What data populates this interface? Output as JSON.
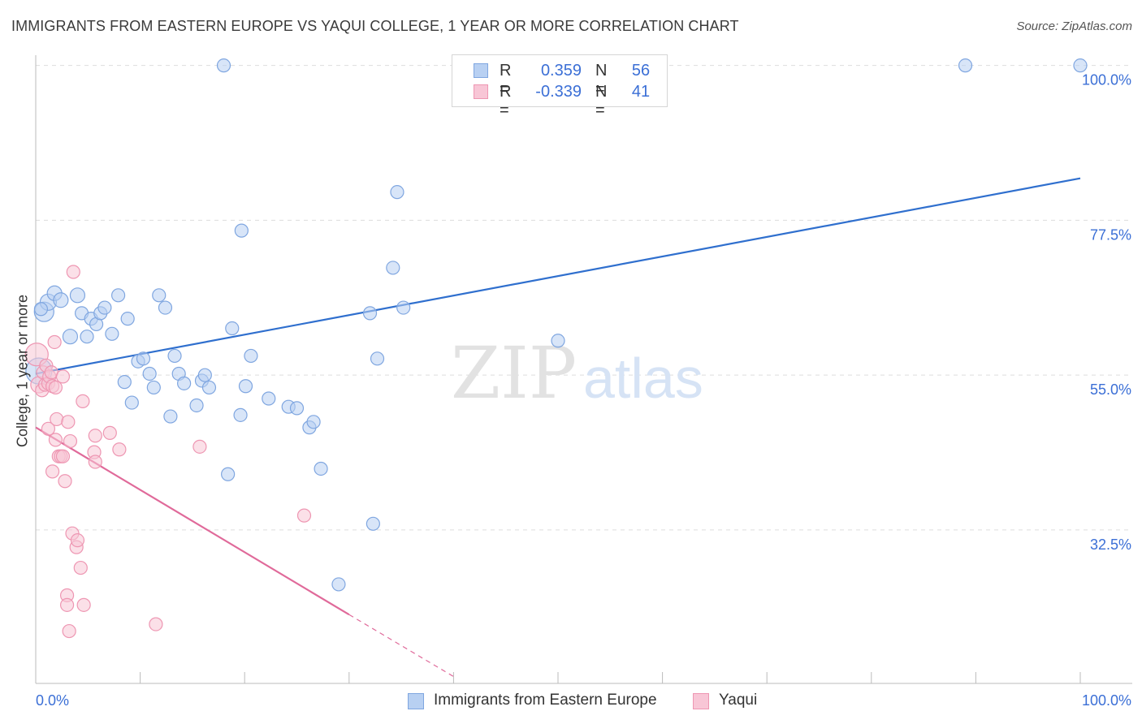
{
  "header": {
    "title": "IMMIGRANTS FROM EASTERN EUROPE VS YAQUI COLLEGE, 1 YEAR OR MORE CORRELATION CHART",
    "source": "Source: ZipAtlas.com"
  },
  "watermark": {
    "zip": "ZIP",
    "atlas": "atlas"
  },
  "legend": {
    "rows": [
      {
        "r_label": "R =",
        "r_value": "0.359",
        "n_label": "N =",
        "n_value": "56"
      },
      {
        "r_label": "R =",
        "r_value": "-0.339",
        "n_label": "N =",
        "n_value": "41"
      }
    ]
  },
  "bottom_legend": {
    "series1": "Immigrants from Eastern Europe",
    "series2": "Yaqui"
  },
  "colors": {
    "blue_fill": "#b8d0f2",
    "blue_stroke": "#7fa6e0",
    "blue_line": "#2f6fce",
    "pink_fill": "#f8c6d6",
    "pink_stroke": "#ee96b2",
    "pink_line": "#e06a9a",
    "grid": "#dddddd",
    "tick_text": "#3b6fd6"
  },
  "chart_data": {
    "type": "scatter",
    "title": "IMMIGRANTS FROM EASTERN EUROPE VS YAQUI COLLEGE, 1 YEAR OR MORE CORRELATION CHART",
    "xlabel": "",
    "ylabel": "College, 1 year or more",
    "xlim": [
      0,
      100
    ],
    "ylim": [
      10.2,
      102.2
    ],
    "x_tick_labels": [
      "0.0%",
      "100.0%"
    ],
    "y_ticks": [
      {
        "value": 100.0,
        "label": "100.0%"
      },
      {
        "value": 77.5,
        "label": "77.5%"
      },
      {
        "value": 55.0,
        "label": "55.0%"
      },
      {
        "value": 32.5,
        "label": "32.5%"
      }
    ],
    "series": [
      {
        "name": "Immigrants from Eastern Europe",
        "r": 0.359,
        "n": 56,
        "trend": {
          "x0": 0,
          "y0": 55.2,
          "x1": 100,
          "y1": 83.6
        },
        "points": [
          [
            0.3,
            55.6,
            16
          ],
          [
            0.8,
            64.2,
            12
          ],
          [
            1.2,
            65.6,
            10
          ],
          [
            1.8,
            66.9,
            9
          ],
          [
            2.4,
            65.9,
            9
          ],
          [
            3.3,
            60.6,
            9
          ],
          [
            4.0,
            66.6,
            9
          ],
          [
            4.4,
            64.0,
            8
          ],
          [
            4.9,
            60.6,
            8
          ],
          [
            5.3,
            63.2,
            8
          ],
          [
            5.8,
            62.4,
            8
          ],
          [
            6.2,
            64.0,
            8
          ],
          [
            6.6,
            64.8,
            8
          ],
          [
            7.3,
            61.0,
            8
          ],
          [
            7.9,
            66.6,
            8
          ],
          [
            8.5,
            54.0,
            8
          ],
          [
            8.8,
            63.2,
            8
          ],
          [
            9.2,
            51.0,
            8
          ],
          [
            9.8,
            57.0,
            8
          ],
          [
            10.3,
            57.4,
            8
          ],
          [
            10.9,
            55.2,
            8
          ],
          [
            11.3,
            53.2,
            8
          ],
          [
            11.8,
            66.6,
            8
          ],
          [
            12.4,
            64.8,
            8
          ],
          [
            12.9,
            49.0,
            8
          ],
          [
            13.3,
            57.8,
            8
          ],
          [
            13.7,
            55.2,
            8
          ],
          [
            14.2,
            53.8,
            8
          ],
          [
            15.4,
            50.6,
            8
          ],
          [
            15.9,
            54.2,
            8
          ],
          [
            16.2,
            55.0,
            8
          ],
          [
            16.6,
            53.2,
            8
          ],
          [
            18.0,
            100.0,
            8
          ],
          [
            18.4,
            40.6,
            8
          ],
          [
            18.8,
            61.8,
            8
          ],
          [
            19.7,
            76.0,
            8
          ],
          [
            20.1,
            53.4,
            8
          ],
          [
            20.6,
            57.8,
            8
          ],
          [
            19.6,
            49.2,
            8
          ],
          [
            22.3,
            51.6,
            8
          ],
          [
            24.2,
            50.4,
            8
          ],
          [
            25.0,
            50.2,
            8
          ],
          [
            26.2,
            47.4,
            8
          ],
          [
            26.6,
            48.2,
            8
          ],
          [
            27.3,
            41.4,
            8
          ],
          [
            29.0,
            24.6,
            8
          ],
          [
            32.0,
            64.0,
            8
          ],
          [
            32.3,
            33.4,
            8
          ],
          [
            32.7,
            57.4,
            8
          ],
          [
            34.2,
            70.6,
            8
          ],
          [
            34.6,
            81.6,
            8
          ],
          [
            35.2,
            64.8,
            8
          ],
          [
            50.0,
            60.0,
            8
          ],
          [
            89.0,
            100.0,
            8
          ],
          [
            100.0,
            100.0,
            8
          ],
          [
            0.5,
            64.6,
            8
          ]
        ]
      },
      {
        "name": "Yaqui",
        "r": -0.339,
        "n": 41,
        "trend": {
          "x0": 0,
          "y0": 47.4,
          "x1": 30,
          "y1": 20.2,
          "dash_to_x": 40,
          "dash_to_y": 11.2
        },
        "points": [
          [
            0.1,
            58.0,
            14
          ],
          [
            0.3,
            53.6,
            10
          ],
          [
            0.6,
            52.8,
            8
          ],
          [
            0.7,
            55.4,
            8
          ],
          [
            0.9,
            53.6,
            8
          ],
          [
            1.0,
            56.4,
            8
          ],
          [
            1.2,
            53.8,
            8
          ],
          [
            1.3,
            54.8,
            8
          ],
          [
            1.5,
            55.4,
            8
          ],
          [
            1.6,
            53.4,
            8
          ],
          [
            1.8,
            59.8,
            8
          ],
          [
            1.9,
            53.2,
            8
          ],
          [
            1.2,
            47.2,
            8
          ],
          [
            1.9,
            45.6,
            8
          ],
          [
            2.0,
            48.6,
            8
          ],
          [
            2.2,
            43.2,
            8
          ],
          [
            2.4,
            43.2,
            8
          ],
          [
            2.6,
            43.2,
            8
          ],
          [
            2.6,
            54.8,
            8
          ],
          [
            2.8,
            39.6,
            8
          ],
          [
            3.1,
            48.2,
            8
          ],
          [
            3.3,
            45.4,
            8
          ],
          [
            1.6,
            41.0,
            8
          ],
          [
            3.5,
            32.0,
            8
          ],
          [
            3.6,
            70.0,
            8
          ],
          [
            3.9,
            30.0,
            8
          ],
          [
            4.0,
            31.0,
            8
          ],
          [
            4.3,
            27.0,
            8
          ],
          [
            4.6,
            21.6,
            8
          ],
          [
            3.0,
            23.0,
            8
          ],
          [
            3.0,
            21.6,
            8
          ],
          [
            3.2,
            17.8,
            8
          ],
          [
            4.5,
            51.2,
            8
          ],
          [
            5.6,
            43.8,
            8
          ],
          [
            5.7,
            42.4,
            8
          ],
          [
            5.7,
            46.2,
            8
          ],
          [
            7.1,
            46.6,
            8
          ],
          [
            8.0,
            44.2,
            8
          ],
          [
            11.5,
            18.8,
            8
          ],
          [
            15.7,
            44.6,
            8
          ],
          [
            25.7,
            34.6,
            8
          ]
        ]
      }
    ]
  }
}
